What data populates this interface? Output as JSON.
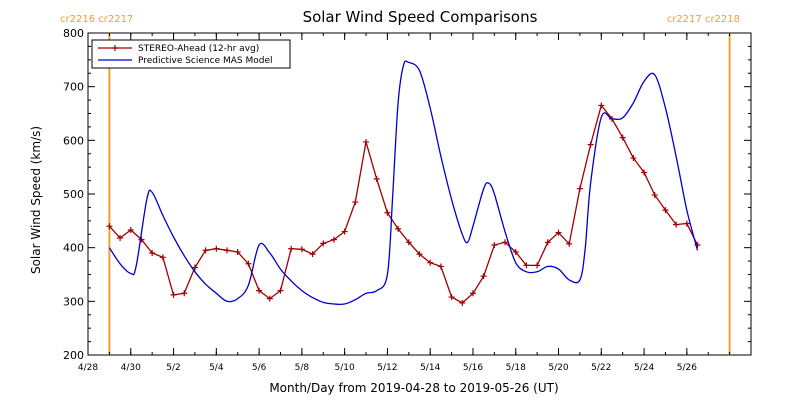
{
  "chart_data": {
    "type": "line",
    "title": "Solar Wind Speed Comparisons",
    "xlabel": "Month/Day from 2019-04-28 to 2019-05-26 (UT)",
    "ylabel": "Solar Wind Speed (km/s)",
    "xlim": [
      "2019-04-28",
      "2019-05-29"
    ],
    "ylim": [
      200,
      800
    ],
    "yticks": [
      200,
      300,
      400,
      500,
      600,
      700,
      800
    ],
    "xticks": [
      {
        "date": "2019-04-28",
        "label": "4/28"
      },
      {
        "date": "2019-04-30",
        "label": "4/30"
      },
      {
        "date": "2019-05-02",
        "label": "5/2"
      },
      {
        "date": "2019-05-04",
        "label": "5/4"
      },
      {
        "date": "2019-05-06",
        "label": "5/6"
      },
      {
        "date": "2019-05-08",
        "label": "5/8"
      },
      {
        "date": "2019-05-10",
        "label": "5/10"
      },
      {
        "date": "2019-05-12",
        "label": "5/12"
      },
      {
        "date": "2019-05-14",
        "label": "5/14"
      },
      {
        "date": "2019-05-16",
        "label": "5/16"
      },
      {
        "date": "2019-05-18",
        "label": "5/18"
      },
      {
        "date": "2019-05-20",
        "label": "5/20"
      },
      {
        "date": "2019-05-22",
        "label": "5/22"
      },
      {
        "date": "2019-05-24",
        "label": "5/24"
      },
      {
        "date": "2019-05-26",
        "label": "5/26"
      }
    ],
    "grid": false,
    "legend": {
      "placement": "top-left",
      "entries": [
        {
          "name": "STEREO-Ahead (12-hr avg)",
          "color": "#a00000",
          "marker": "plus"
        },
        {
          "name": "Predictive Science MAS Model",
          "color": "#0000cc",
          "marker": "none"
        }
      ]
    },
    "rotation_markers": [
      {
        "date": "2019-04-29",
        "labels": [
          "cr2216",
          "cr2217"
        ],
        "color": "#f0a030",
        "label_side": "left"
      },
      {
        "date": "2019-05-28",
        "labels": [
          "cr2217",
          "cr2218"
        ],
        "color": "#f0a030",
        "label_side": "right"
      }
    ],
    "series": [
      {
        "name": "STEREO-Ahead (12-hr avg)",
        "color": "#a00000",
        "points": [
          [
            "2019-04-29T00:00",
            440
          ],
          [
            "2019-04-29T12:00",
            418
          ],
          [
            "2019-04-30T00:00",
            433
          ],
          [
            "2019-04-30T12:00",
            415
          ],
          [
            "2019-05-01T00:00",
            390
          ],
          [
            "2019-05-01T12:00",
            382
          ],
          [
            "2019-05-02T00:00",
            312
          ],
          [
            "2019-05-02T12:00",
            315
          ],
          [
            "2019-05-03T00:00",
            363
          ],
          [
            "2019-05-03T12:00",
            395
          ],
          [
            "2019-05-04T00:00",
            398
          ],
          [
            "2019-05-04T12:00",
            395
          ],
          [
            "2019-05-05T00:00",
            392
          ],
          [
            "2019-05-05T12:00",
            370
          ],
          [
            "2019-05-06T00:00",
            320
          ],
          [
            "2019-05-06T12:00",
            305
          ],
          [
            "2019-05-07T00:00",
            320
          ],
          [
            "2019-05-07T12:00",
            398
          ],
          [
            "2019-05-08T00:00",
            397
          ],
          [
            "2019-05-08T12:00",
            388
          ],
          [
            "2019-05-09T00:00",
            408
          ],
          [
            "2019-05-09T12:00",
            415
          ],
          [
            "2019-05-10T00:00",
            430
          ],
          [
            "2019-05-10T12:00",
            485
          ],
          [
            "2019-05-11T00:00",
            597
          ],
          [
            "2019-05-11T12:00",
            528
          ],
          [
            "2019-05-12T00:00",
            465
          ],
          [
            "2019-05-12T12:00",
            435
          ],
          [
            "2019-05-13T00:00",
            410
          ],
          [
            "2019-05-13T12:00",
            388
          ],
          [
            "2019-05-14T00:00",
            372
          ],
          [
            "2019-05-14T12:00",
            365
          ],
          [
            "2019-05-15T00:00",
            308
          ],
          [
            "2019-05-15T12:00",
            297
          ],
          [
            "2019-05-16T00:00",
            315
          ],
          [
            "2019-05-16T12:00",
            347
          ],
          [
            "2019-05-17T00:00",
            405
          ],
          [
            "2019-05-17T12:00",
            410
          ],
          [
            "2019-05-18T00:00",
            392
          ],
          [
            "2019-05-18T12:00",
            367
          ],
          [
            "2019-05-19T00:00",
            367
          ],
          [
            "2019-05-19T12:00",
            410
          ],
          [
            "2019-05-20T00:00",
            428
          ],
          [
            "2019-05-20T12:00",
            407
          ],
          [
            "2019-05-21T00:00",
            510
          ],
          [
            "2019-05-21T12:00",
            592
          ],
          [
            "2019-05-22T00:00",
            665
          ],
          [
            "2019-05-22T12:00",
            640
          ],
          [
            "2019-05-23T00:00",
            605
          ],
          [
            "2019-05-23T12:00",
            567
          ],
          [
            "2019-05-24T00:00",
            540
          ],
          [
            "2019-05-24T12:00",
            498
          ],
          [
            "2019-05-25T00:00",
            470
          ],
          [
            "2019-05-25T12:00",
            443
          ],
          [
            "2019-05-26T00:00",
            445
          ],
          [
            "2019-05-26T12:00",
            405
          ]
        ]
      },
      {
        "name": "Predictive Science MAS Model",
        "color": "#0000cc",
        "points": [
          [
            "2019-04-29T00:00",
            400
          ],
          [
            "2019-04-29T12:00",
            370
          ],
          [
            "2019-04-30T00:00",
            352
          ],
          [
            "2019-04-30T06:00",
            365
          ],
          [
            "2019-04-30T18:00",
            490
          ],
          [
            "2019-05-01T00:00",
            503
          ],
          [
            "2019-05-01T12:00",
            460
          ],
          [
            "2019-05-02T00:00",
            420
          ],
          [
            "2019-05-02T12:00",
            385
          ],
          [
            "2019-05-03T00:00",
            355
          ],
          [
            "2019-05-03T12:00",
            332
          ],
          [
            "2019-05-04T00:00",
            315
          ],
          [
            "2019-05-04T12:00",
            300
          ],
          [
            "2019-05-05T00:00",
            305
          ],
          [
            "2019-05-05T12:00",
            330
          ],
          [
            "2019-05-06T00:00",
            405
          ],
          [
            "2019-05-06T12:00",
            390
          ],
          [
            "2019-05-07T00:00",
            360
          ],
          [
            "2019-05-07T12:00",
            338
          ],
          [
            "2019-05-08T00:00",
            320
          ],
          [
            "2019-05-08T12:00",
            307
          ],
          [
            "2019-05-09T00:00",
            298
          ],
          [
            "2019-05-09T12:00",
            295
          ],
          [
            "2019-05-10T00:00",
            295
          ],
          [
            "2019-05-10T12:00",
            303
          ],
          [
            "2019-05-11T00:00",
            315
          ],
          [
            "2019-05-11T12:00",
            320
          ],
          [
            "2019-05-12T00:00",
            350
          ],
          [
            "2019-05-12T06:00",
            500
          ],
          [
            "2019-05-12T12:00",
            670
          ],
          [
            "2019-05-12T18:00",
            740
          ],
          [
            "2019-05-13T00:00",
            745
          ],
          [
            "2019-05-13T12:00",
            730
          ],
          [
            "2019-05-14T00:00",
            660
          ],
          [
            "2019-05-14T12:00",
            570
          ],
          [
            "2019-05-15T00:00",
            490
          ],
          [
            "2019-05-15T12:00",
            425
          ],
          [
            "2019-05-15T18:00",
            410
          ],
          [
            "2019-05-16T00:00",
            440
          ],
          [
            "2019-05-16T12:00",
            510
          ],
          [
            "2019-05-16T18:00",
            520
          ],
          [
            "2019-05-17T00:00",
            500
          ],
          [
            "2019-05-17T12:00",
            430
          ],
          [
            "2019-05-18T00:00",
            372
          ],
          [
            "2019-05-18T12:00",
            355
          ],
          [
            "2019-05-19T00:00",
            355
          ],
          [
            "2019-05-19T12:00",
            365
          ],
          [
            "2019-05-20T00:00",
            360
          ],
          [
            "2019-05-20T12:00",
            340
          ],
          [
            "2019-05-21T00:00",
            340
          ],
          [
            "2019-05-21T06:00",
            400
          ],
          [
            "2019-05-21T12:00",
            520
          ],
          [
            "2019-05-22T00:00",
            643
          ],
          [
            "2019-05-22T12:00",
            640
          ],
          [
            "2019-05-23T00:00",
            642
          ],
          [
            "2019-05-23T12:00",
            670
          ],
          [
            "2019-05-24T00:00",
            710
          ],
          [
            "2019-05-24T12:00",
            722
          ],
          [
            "2019-05-25T00:00",
            660
          ],
          [
            "2019-05-25T12:00",
            570
          ],
          [
            "2019-05-26T00:00",
            470
          ],
          [
            "2019-05-26T12:00",
            395
          ]
        ]
      }
    ]
  }
}
